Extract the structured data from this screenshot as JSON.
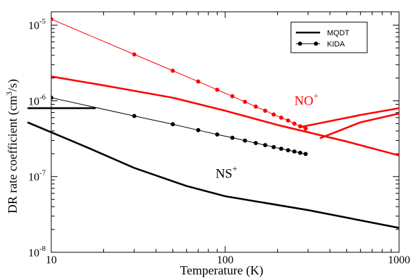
{
  "chart_data": {
    "type": "line",
    "x_scale": "log",
    "y_scale": "log",
    "xlim": [
      10,
      1000
    ],
    "ylim": [
      1e-08,
      1.5e-05
    ],
    "xlabel": "Temperature (K)",
    "ylabel": {
      "main": "DR rate coefficient (cm",
      "sup": "3",
      "tail": "/s)"
    },
    "x_ticks": [
      {
        "value": 10,
        "label": "10"
      },
      {
        "value": 100,
        "label": "100"
      },
      {
        "value": 1000,
        "label": "1000"
      }
    ],
    "y_ticks": [
      {
        "value": 1e-08,
        "base": "10",
        "exp": "-8"
      },
      {
        "value": 1e-07,
        "base": "10",
        "exp": "-7"
      },
      {
        "value": 1e-06,
        "base": "10",
        "exp": "-6"
      },
      {
        "value": 1e-05,
        "base": "10",
        "exp": "-5"
      }
    ],
    "legend": {
      "position": "top-right",
      "entries": [
        {
          "label": "MQDT",
          "style": "thick-line",
          "color": "#000000"
        },
        {
          "label": "KIDA",
          "style": "line-dots",
          "color": "#000000"
        }
      ]
    },
    "annotations": [
      {
        "text": "NO",
        "sup": "+",
        "color": "#ff0000",
        "x": 250,
        "y": 8.8e-07
      },
      {
        "text": "NS",
        "sup": "+",
        "color": "#000000",
        "x": 88,
        "y": 9.6e-08
      }
    ],
    "series": [
      {
        "name": "NO+ MQDT",
        "method": "MQDT",
        "ion": "NO+",
        "color": "#ff0000",
        "width": 2.6,
        "markers": false,
        "points": [
          [
            10,
            2.1e-06
          ],
          [
            20,
            1.6e-06
          ],
          [
            50,
            1.1e-06
          ],
          [
            100,
            7.4e-07
          ],
          [
            200,
            4.8e-07
          ],
          [
            500,
            2.9e-07
          ],
          [
            1000,
            1.9e-07
          ]
        ]
      },
      {
        "name": "NO+ MQDT (high-T branch 1)",
        "method": "MQDT",
        "ion": "NO+",
        "color": "#ff0000",
        "width": 2.6,
        "markers": false,
        "points": [
          [
            270,
            4.5e-07
          ],
          [
            600,
            6.5e-07
          ],
          [
            1000,
            8e-07
          ]
        ]
      },
      {
        "name": "NO+ MQDT (high-T branch 2)",
        "method": "MQDT",
        "ion": "NO+",
        "color": "#ff0000",
        "width": 2.6,
        "markers": false,
        "points": [
          [
            350,
            3.2e-07
          ],
          [
            600,
            5.2e-07
          ],
          [
            1000,
            6.8e-07
          ]
        ]
      },
      {
        "name": "NO+ KIDA",
        "method": "KIDA",
        "ion": "NO+",
        "color": "#ff0000",
        "width": 1,
        "markers": true,
        "points": [
          [
            10,
            1.2e-05
          ],
          [
            30,
            4.1e-06
          ],
          [
            50,
            2.5e-06
          ],
          [
            70,
            1.8e-06
          ],
          [
            90,
            1.4e-06
          ],
          [
            110,
            1.15e-06
          ],
          [
            130,
            9.7e-07
          ],
          [
            150,
            8.4e-07
          ],
          [
            170,
            7.4e-07
          ],
          [
            190,
            6.6e-07
          ],
          [
            210,
            6e-07
          ],
          [
            230,
            5.5e-07
          ],
          [
            250,
            5e-07
          ],
          [
            270,
            4.6e-07
          ],
          [
            290,
            4.3e-07
          ]
        ]
      },
      {
        "name": "NS+ MQDT",
        "method": "MQDT",
        "ion": "NS+",
        "color": "#000000",
        "width": 2.6,
        "markers": false,
        "points": [
          [
            7.3,
            5.2e-07
          ],
          [
            15,
            2.6e-07
          ],
          [
            30,
            1.3e-07
          ],
          [
            60,
            7.5e-08
          ],
          [
            100,
            5.5e-08
          ],
          [
            300,
            3.6e-08
          ],
          [
            1000,
            2.1e-08
          ]
        ]
      },
      {
        "name": "NS+ MQDT (low-T branch)",
        "method": "MQDT",
        "ion": "NS+",
        "color": "#000000",
        "width": 2.6,
        "markers": false,
        "points": [
          [
            7.3,
            8e-07
          ],
          [
            18,
            8e-07
          ]
        ]
      },
      {
        "name": "NS+ KIDA",
        "method": "KIDA",
        "ion": "NS+",
        "color": "#000000",
        "width": 1,
        "markers": true,
        "points": [
          [
            10,
            1.1e-06
          ],
          [
            30,
            6.3e-07
          ],
          [
            50,
            4.9e-07
          ],
          [
            70,
            4.1e-07
          ],
          [
            90,
            3.6e-07
          ],
          [
            110,
            3.25e-07
          ],
          [
            130,
            2.98e-07
          ],
          [
            150,
            2.77e-07
          ],
          [
            170,
            2.6e-07
          ],
          [
            190,
            2.45e-07
          ],
          [
            210,
            2.33e-07
          ],
          [
            230,
            2.23e-07
          ],
          [
            250,
            2.14e-07
          ],
          [
            270,
            2.06e-07
          ],
          [
            290,
            1.99e-07
          ]
        ]
      }
    ]
  }
}
